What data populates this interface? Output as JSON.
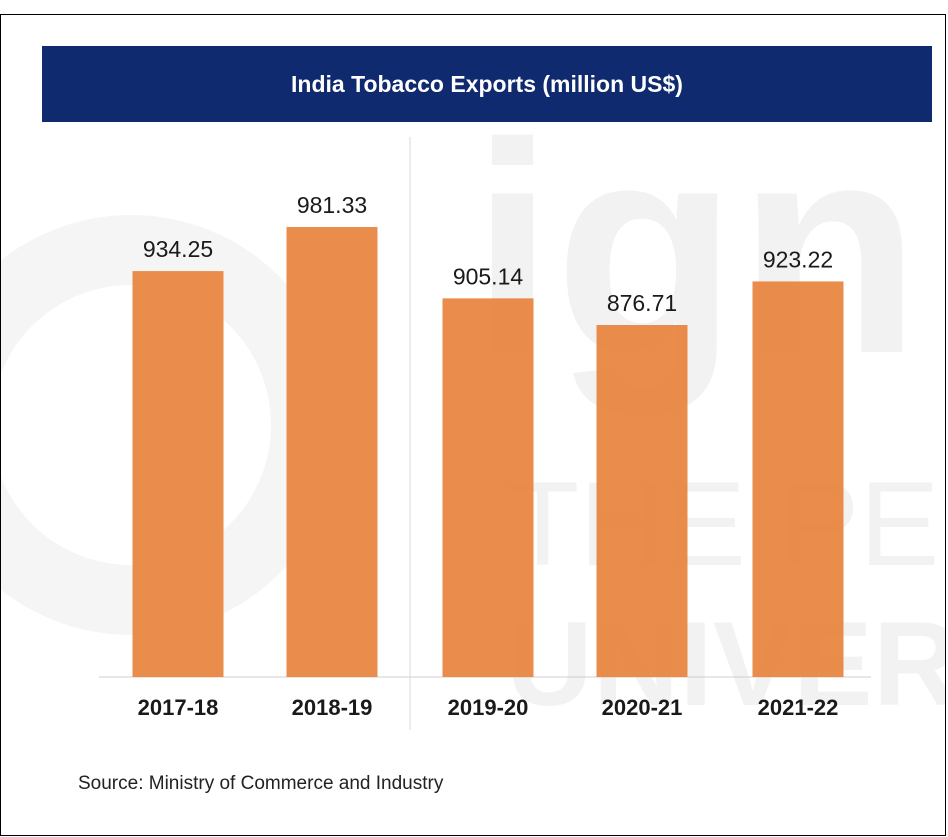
{
  "chart_data": {
    "type": "bar",
    "title": "India Tobacco Exports (million US$)",
    "categories": [
      "2017-18",
      "2018-19",
      "2019-20",
      "2020-21",
      "2021-22"
    ],
    "values": [
      934.25,
      981.33,
      905.14,
      876.71,
      923.22
    ],
    "value_labels": [
      "934.25",
      "981.33",
      "905.14",
      "876.71",
      "923.22"
    ],
    "ylim": [
      0,
      1000
    ],
    "grid": false,
    "bar_color": "#e8823c",
    "title_bg": "#0f2a6e"
  },
  "source": "Source: Ministry of Commerce and Industry",
  "watermark": {
    "word": "ign",
    "line1": "THE PEO",
    "line2": "UNIVER"
  }
}
